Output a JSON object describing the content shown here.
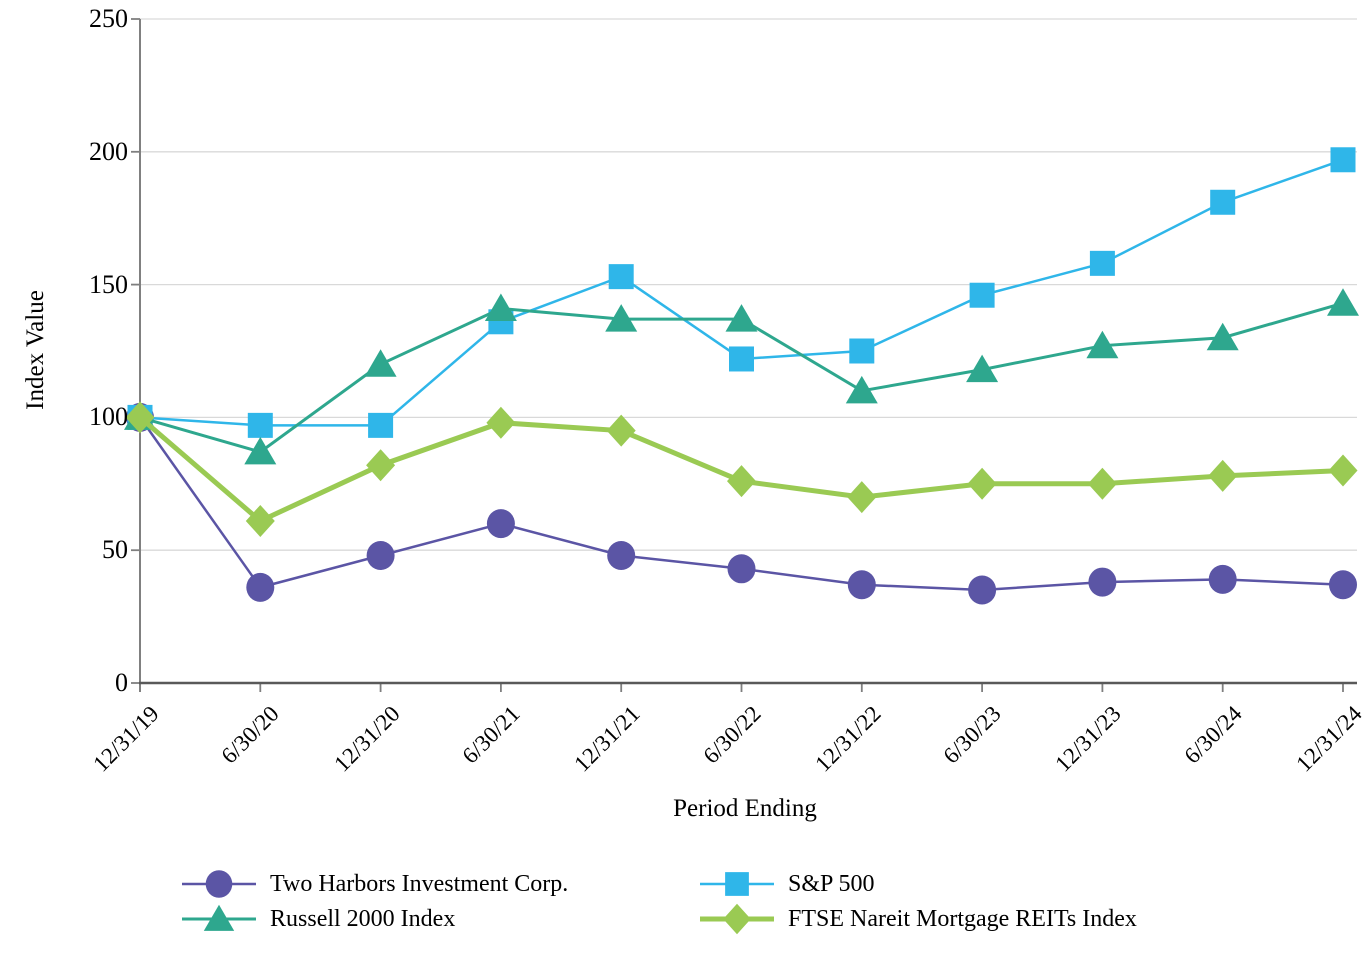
{
  "chart_data": {
    "type": "line",
    "title": "",
    "xlabel": "Period Ending",
    "ylabel": "Index Value",
    "ylim": [
      0,
      250
    ],
    "yticks": [
      250,
      200,
      150,
      100,
      50,
      0
    ],
    "grid": "horizontal",
    "legend_position": "bottom",
    "categories": [
      "12/31/19",
      "6/30/20",
      "12/31/20",
      "6/30/21",
      "12/31/21",
      "6/30/22",
      "12/31/22",
      "6/30/23",
      "12/31/23",
      "6/30/24",
      "12/31/24"
    ],
    "series": [
      {
        "name": "Two Harbors Investment Corp.",
        "marker": "circle",
        "color": "#5B55A5",
        "line_width": 2.5,
        "values": [
          100,
          36,
          48,
          60,
          48,
          43,
          37,
          35,
          38,
          39,
          37
        ]
      },
      {
        "name": "S&P 500",
        "marker": "square",
        "color": "#2FB6E9",
        "line_width": 2.5,
        "values": [
          100,
          97,
          97,
          136,
          153,
          122,
          125,
          146,
          158,
          181,
          197
        ]
      },
      {
        "name": "Russell 2000 Index",
        "marker": "triangle",
        "color": "#2EA78E",
        "line_width": 3,
        "values": [
          100,
          87,
          120,
          141,
          137,
          137,
          110,
          118,
          127,
          130,
          143
        ]
      },
      {
        "name": "FTSE Nareit Mortgage REITs Index",
        "marker": "diamond",
        "color": "#9ACA53",
        "line_width": 5,
        "values": [
          100,
          61,
          82,
          98,
          95,
          76,
          70,
          75,
          75,
          78,
          80
        ]
      }
    ],
    "colors": {
      "gridline": "#D9D9D9",
      "axis": "#595959",
      "y_axis_line": "#808080",
      "tick": "#7F7F7F",
      "text": "#000000"
    }
  }
}
